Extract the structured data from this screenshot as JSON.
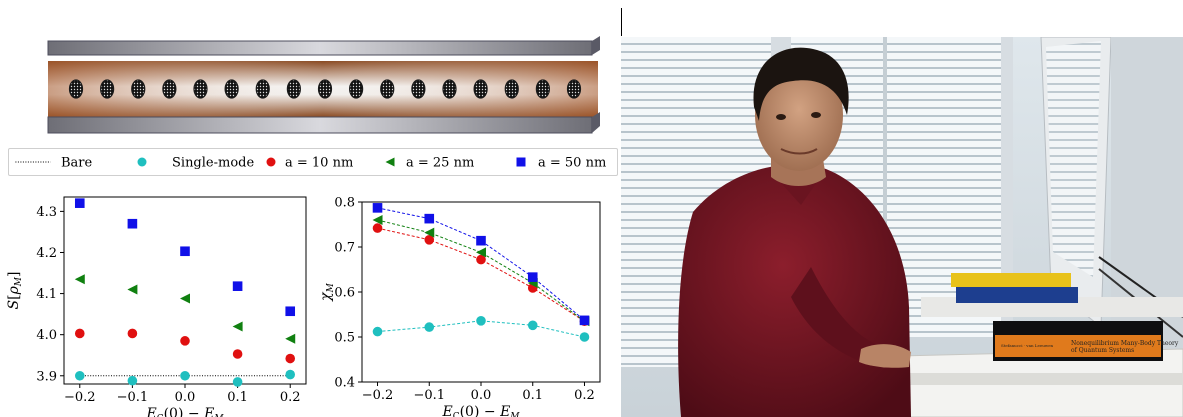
{
  "schematic": {
    "dot_count": 17,
    "dot_fill": "#1a1a1a",
    "core_color": "#b0693e",
    "mirror_color": "#8c8c92"
  },
  "legend": {
    "items": [
      {
        "label": "Bare",
        "marker": "dotted-line",
        "color": "#000000"
      },
      {
        "label": "Single-mode",
        "marker": "circle",
        "color": "#1fbfbf"
      },
      {
        "label": "a = 10 nm",
        "marker": "circle",
        "color": "#e01010"
      },
      {
        "label": "a = 25 nm",
        "marker": "triangle-left",
        "color": "#108010"
      },
      {
        "label": "a = 50 nm",
        "marker": "square",
        "color": "#1010e8"
      }
    ]
  },
  "chart_data": [
    {
      "type": "scatter",
      "ylabel": "S[ρ_M]",
      "xlabel": "E_C(0) − E_M",
      "xlim": [
        -0.23,
        0.23
      ],
      "ylim": [
        3.88,
        4.335
      ],
      "xticks": [
        "−0.2",
        "−0.1",
        "0.0",
        "0.1",
        "0.2"
      ],
      "xtick_values": [
        -0.2,
        -0.1,
        0.0,
        0.1,
        0.2
      ],
      "yticks": [
        "3.9",
        "4.0",
        "4.1",
        "4.2",
        "4.3"
      ],
      "ytick_values": [
        3.9,
        4.0,
        4.1,
        4.2,
        4.3
      ],
      "x": [
        -0.2,
        -0.1,
        0.0,
        0.1,
        0.2
      ],
      "bare_line": 3.9,
      "series": [
        {
          "name": "Single-mode",
          "values": [
            3.9,
            3.888,
            3.9,
            3.885,
            3.903
          ],
          "marker": "circle",
          "color": "#1fbfbf"
        },
        {
          "name": "a = 10 nm",
          "values": [
            4.003,
            4.003,
            3.985,
            3.953,
            3.942
          ],
          "marker": "circle",
          "color": "#e01010"
        },
        {
          "name": "a = 25 nm",
          "values": [
            4.135,
            4.11,
            4.088,
            4.02,
            3.99
          ],
          "marker": "triangle-left",
          "color": "#108010"
        },
        {
          "name": "a = 50 nm",
          "values": [
            4.32,
            4.27,
            4.203,
            4.118,
            4.057
          ],
          "marker": "square",
          "color": "#1010e8"
        }
      ]
    },
    {
      "type": "line",
      "ylabel": "χ_M",
      "xlabel": "E_C(0) − E_M",
      "xlim": [
        -0.23,
        0.23
      ],
      "ylim": [
        0.4,
        0.8
      ],
      "xticks": [
        "−0.2",
        "−0.1",
        "0.0",
        "0.1",
        "0.2"
      ],
      "xtick_values": [
        -0.2,
        -0.1,
        0.0,
        0.1,
        0.2
      ],
      "yticks": [
        "0.4",
        "0.5",
        "0.6",
        "0.7",
        "0.8"
      ],
      "ytick_values": [
        0.4,
        0.5,
        0.6,
        0.7,
        0.8
      ],
      "x": [
        -0.2,
        -0.1,
        0.0,
        0.1,
        0.2
      ],
      "series": [
        {
          "name": "Single-mode",
          "values": [
            0.512,
            0.522,
            0.536,
            0.526,
            0.5
          ],
          "marker": "circle",
          "color": "#1fbfbf"
        },
        {
          "name": "a = 10 nm",
          "values": [
            0.742,
            0.716,
            0.672,
            0.609,
            0.535
          ],
          "marker": "circle",
          "color": "#e01010"
        },
        {
          "name": "a = 25 nm",
          "values": [
            0.76,
            0.732,
            0.688,
            0.62,
            0.535
          ],
          "marker": "triangle-left",
          "color": "#108010"
        },
        {
          "name": "a = 50 nm",
          "values": [
            0.787,
            0.763,
            0.714,
            0.633,
            0.537
          ],
          "marker": "square",
          "color": "#1010e8"
        }
      ]
    }
  ],
  "photo": {
    "books": [
      {
        "title": "Nonequilibrium Many-Body Theory",
        "subtitle": "of Quantum Systems",
        "author": "Stefanucci · van Leeuwen"
      }
    ]
  }
}
